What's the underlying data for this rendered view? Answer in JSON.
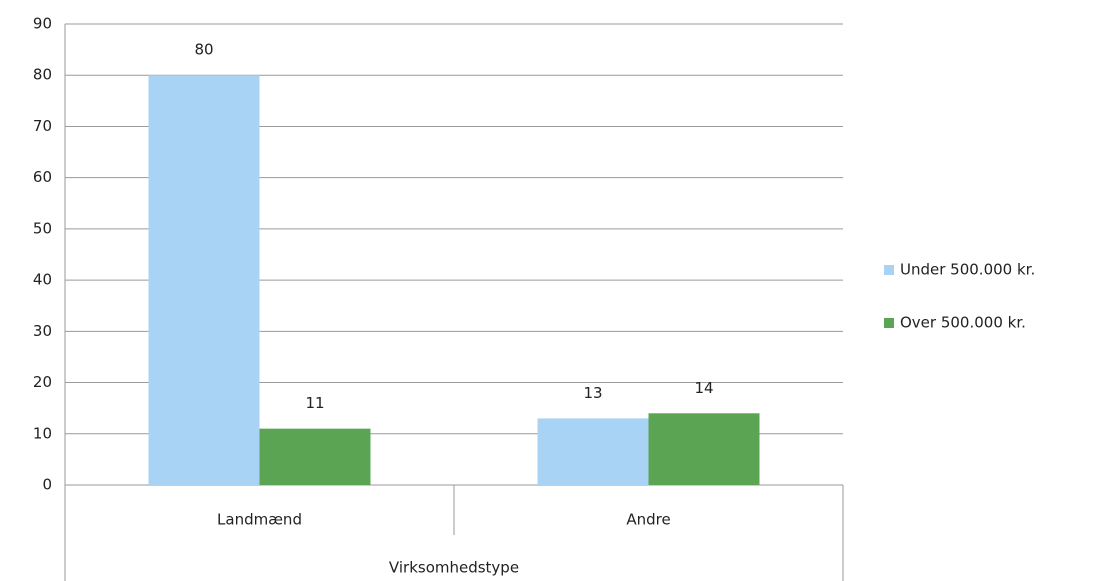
{
  "chart_data": {
    "type": "bar",
    "categories": [
      "Landmænd",
      "Andre"
    ],
    "x_label": "Virksomhedstype",
    "series": [
      {
        "name": "Under 500.000 kr.",
        "color": "#a9d3f5",
        "values": [
          80,
          13
        ]
      },
      {
        "name": "Over 500.000 kr.",
        "color": "#5aa454",
        "values": [
          11,
          14
        ]
      }
    ],
    "ylim": [
      0,
      90
    ],
    "yticks": [
      0,
      10,
      20,
      30,
      40,
      50,
      60,
      70,
      80,
      90
    ],
    "grid": true,
    "legend": "right"
  }
}
